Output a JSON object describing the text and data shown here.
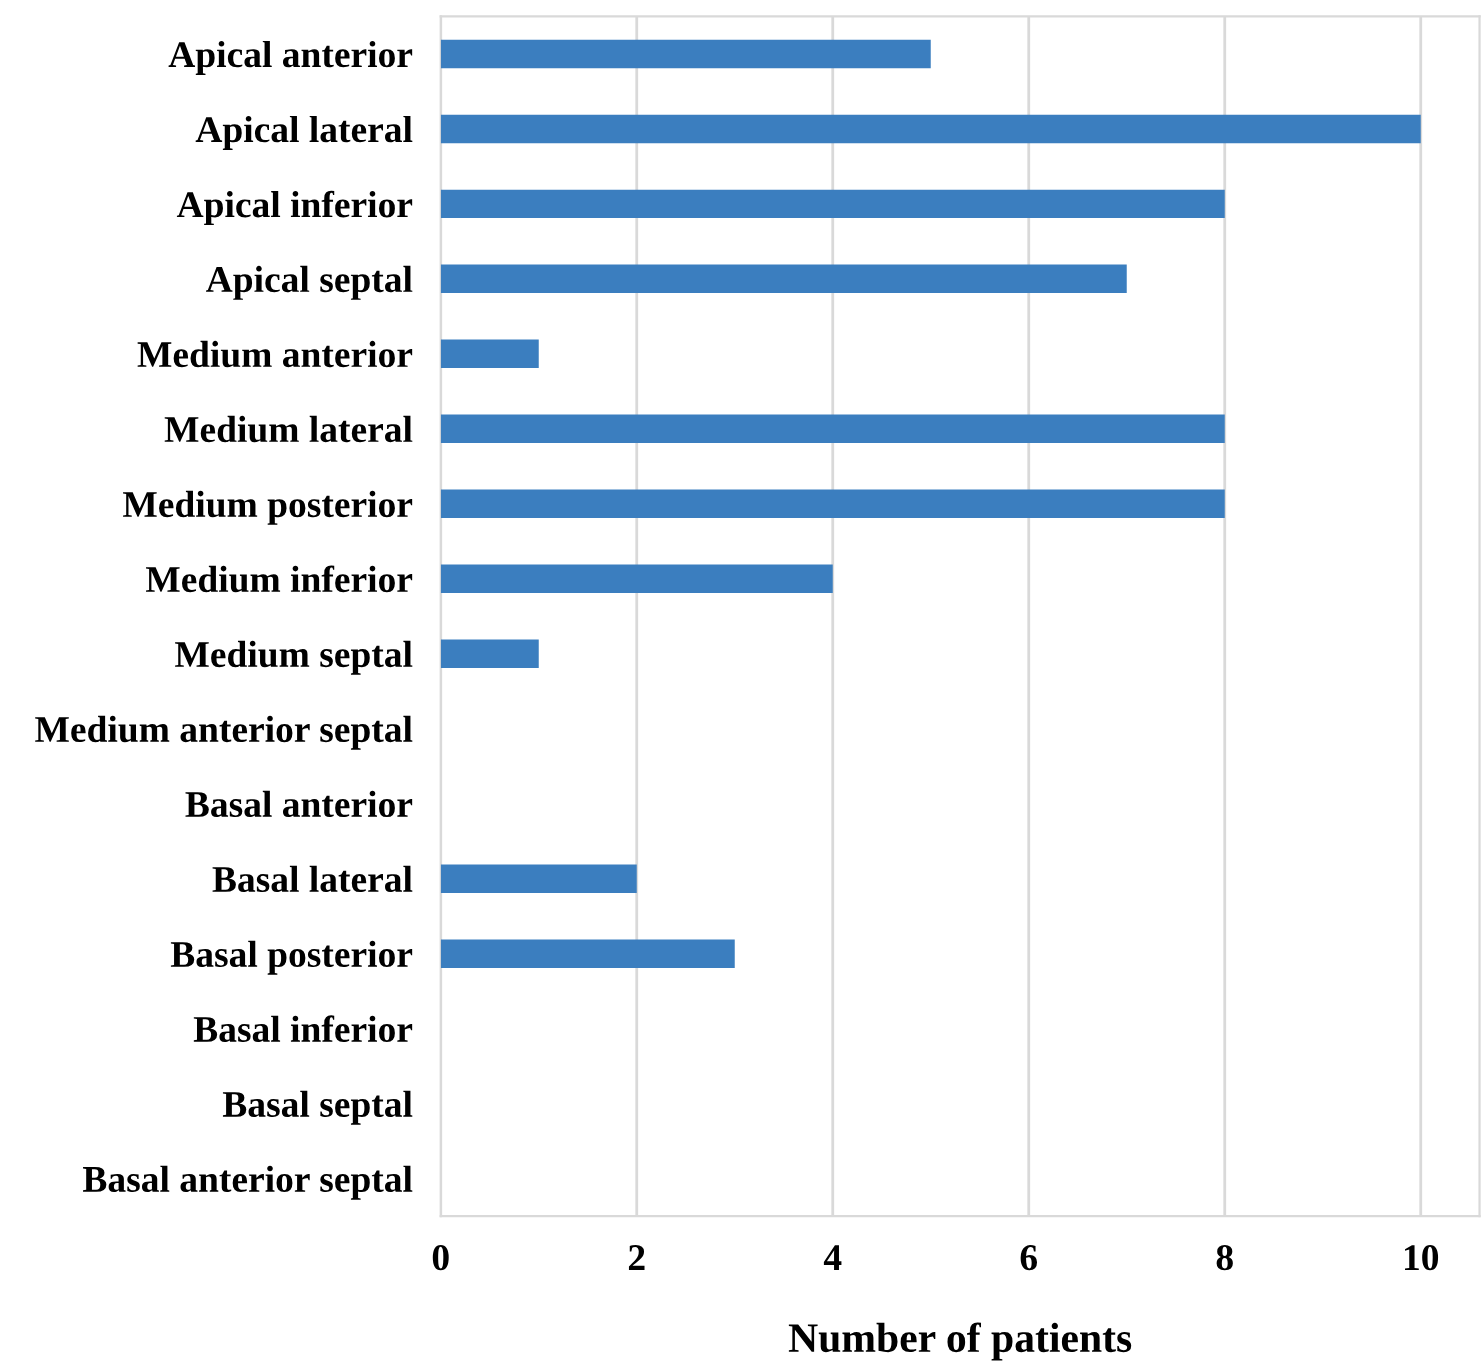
{
  "chart_data": {
    "type": "bar",
    "orientation": "horizontal",
    "xlabel": "Number of patients",
    "categories": [
      "Apical anterior",
      "Apical lateral",
      "Apical inferior",
      "Apical septal",
      "Medium anterior",
      "Medium lateral",
      "Medium posterior",
      "Medium inferior",
      "Medium septal",
      "Medium anterior septal",
      "Basal anterior",
      "Basal lateral",
      "Basal posterior",
      "Basal inferior",
      "Basal septal",
      "Basal anterior septal"
    ],
    "values": [
      5,
      10,
      8,
      7,
      1,
      8,
      8,
      4,
      1,
      0,
      0,
      2,
      3,
      0,
      0,
      0
    ],
    "color": "#3b7ebf",
    "xlim": [
      0,
      10.6
    ],
    "xticks": [
      0,
      2,
      4,
      6,
      8,
      10
    ],
    "grid": "x"
  }
}
